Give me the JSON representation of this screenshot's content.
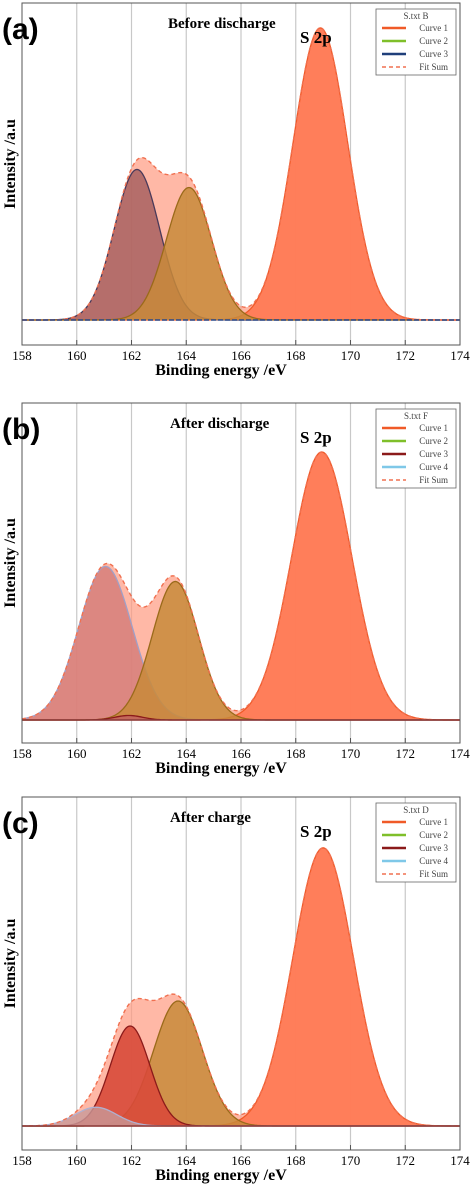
{
  "chart_data": [
    {
      "type": "area",
      "panel_label": "(a)",
      "title": "Before discharge",
      "annotation": "S 2p",
      "xlabel": "Binding energy /eV",
      "ylabel": "Intensity /a.u",
      "xlim": [
        158,
        174
      ],
      "x_ticks": [
        "158",
        "160",
        "162",
        "164",
        "166",
        "168",
        "170",
        "172",
        "174"
      ],
      "legend_title": "S.txt B",
      "legend": [
        "Curve 1",
        "Curve 2",
        "Curve 3",
        "Fit Sum"
      ],
      "grid": true,
      "series": [
        {
          "name": "Curve 1",
          "center": 168.9,
          "fwhm": 2.35,
          "height": 0.97
        },
        {
          "name": "Curve 2",
          "center": 164.1,
          "fwhm": 1.95,
          "height": 0.44
        },
        {
          "name": "Curve 3",
          "center": 162.2,
          "fwhm": 1.95,
          "height": 0.5
        }
      ]
    },
    {
      "type": "area",
      "panel_label": "(b)",
      "title": "After discharge",
      "annotation": "S 2p",
      "xlabel": "Binding energy /eV",
      "ylabel": "Intensity /a.u",
      "xlim": [
        158,
        174
      ],
      "x_ticks": [
        "158",
        "160",
        "162",
        "164",
        "166",
        "168",
        "170",
        "172",
        "174"
      ],
      "legend_title": "S.txt F",
      "legend": [
        "Curve 1",
        "Curve 2",
        "Curve 3",
        "Curve 4",
        "Fit Sum"
      ],
      "grid": true,
      "series": [
        {
          "name": "Curve 1",
          "center": 168.95,
          "fwhm": 2.6,
          "height": 0.89
        },
        {
          "name": "Curve 2",
          "center": 163.6,
          "fwhm": 2.0,
          "height": 0.46
        },
        {
          "name": "Curve 3",
          "center": 161.9,
          "fwhm": 1.2,
          "height": 0.015
        },
        {
          "name": "Curve 4",
          "center": 161.05,
          "fwhm": 2.3,
          "height": 0.51
        }
      ]
    },
    {
      "type": "area",
      "panel_label": "(c)",
      "title": "After charge",
      "annotation": "S 2p",
      "xlabel": "Binding energy /eV",
      "ylabel": "Intensity /a.u",
      "xlim": [
        158,
        174
      ],
      "x_ticks": [
        "158",
        "160",
        "162",
        "164",
        "166",
        "168",
        "170",
        "172",
        "174"
      ],
      "legend_title": "S.txt D",
      "legend": [
        "Curve 1",
        "Curve 2",
        "Curve 3",
        "Curve 4",
        "Fit Sum"
      ],
      "grid": true,
      "series": [
        {
          "name": "Curve 1",
          "center": 169.0,
          "fwhm": 2.6,
          "height": 0.89
        },
        {
          "name": "Curve 2",
          "center": 163.7,
          "fwhm": 2.1,
          "height": 0.4
        },
        {
          "name": "Curve 3",
          "center": 161.95,
          "fwhm": 1.7,
          "height": 0.32
        },
        {
          "name": "Curve 4",
          "center": 160.7,
          "fwhm": 1.8,
          "height": 0.06
        }
      ]
    }
  ],
  "colors": {
    "Curve 1": "#f05a28",
    "Curve 2": "#7fbf2a",
    "Curve 3 (a)": "#1f3f7a",
    "Curve 3": "#8b1a1a",
    "Curve 4": "#7fc8e8",
    "Fit Sum": "#f07050",
    "fill_curve1": "#ff7a55",
    "fill_curve2": "#c88a3a",
    "fill_curve3_a": "#a86060",
    "fill_curve3_c": "#d84a3a",
    "fill_curve4_b": "#d67e7a",
    "fill_curve4_c": "#c89898",
    "fit_fill": "#ff9a80",
    "grid": "#c8c8c8"
  }
}
